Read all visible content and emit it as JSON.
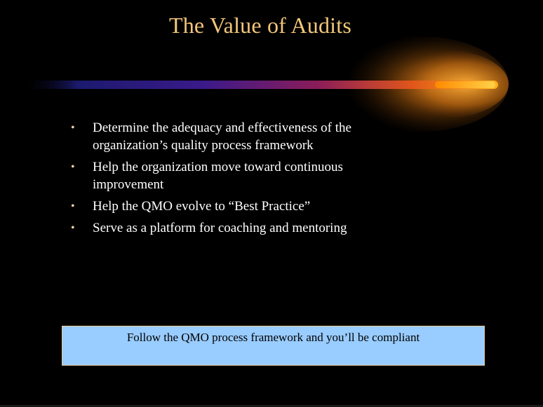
{
  "slide": {
    "title": "The Value of Audits",
    "bullets": [
      {
        "marker": "•",
        "text": "Determine the adequacy and effectiveness of the organization’s quality process framework"
      },
      {
        "marker": "•",
        "text": "Help the organization move toward continuous improvement"
      },
      {
        "marker": "•",
        "text": "Help the QMO evolve to “Best Practice”"
      },
      {
        "marker": "•",
        "text": "Serve as a platform for coaching and mentoring"
      }
    ],
    "callout": "Follow the QMO process framework and you’ll be compliant"
  },
  "colors": {
    "background": "#000000",
    "title": "#f2c77a",
    "body_text": "#ffffff",
    "callout_fill": "#99ccff",
    "callout_border": "#e6c88f",
    "comet_head": "#ffb21a",
    "comet_tail": "#3a1a8a"
  }
}
